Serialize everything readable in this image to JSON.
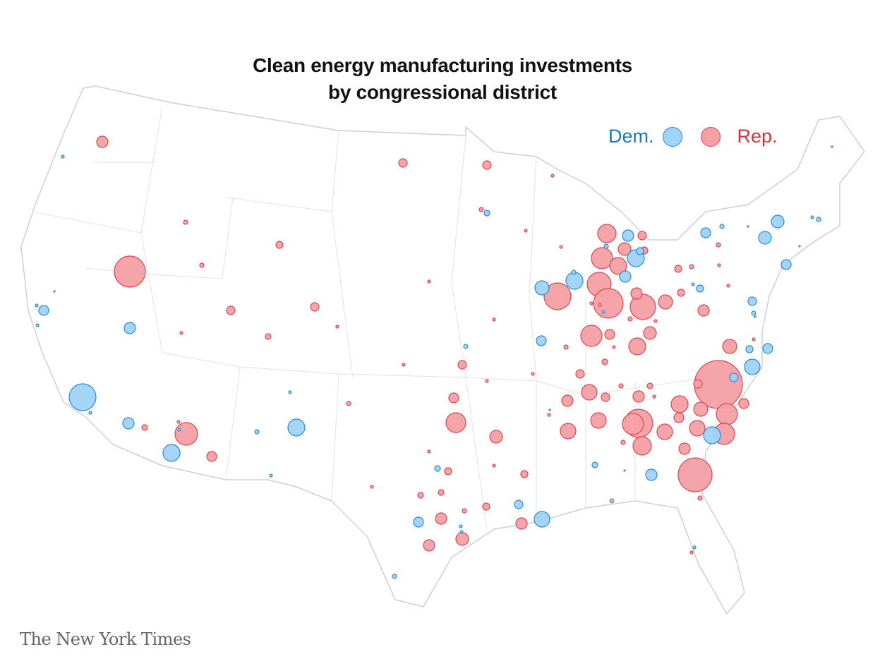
{
  "title": {
    "line1": "Clean energy manufacturing investments",
    "line2": "by congressional district"
  },
  "legend": {
    "dem_label": "Dem.",
    "rep_label": "Rep."
  },
  "colors": {
    "dem_fill": "#9fd3f7",
    "dem_stroke": "#2a8ad1",
    "rep_fill": "#f4a0a4",
    "rep_stroke": "#d9484e",
    "dem_text": "#1a78c2",
    "rep_text": "#d0343a"
  },
  "credit": "The New York Times"
}
